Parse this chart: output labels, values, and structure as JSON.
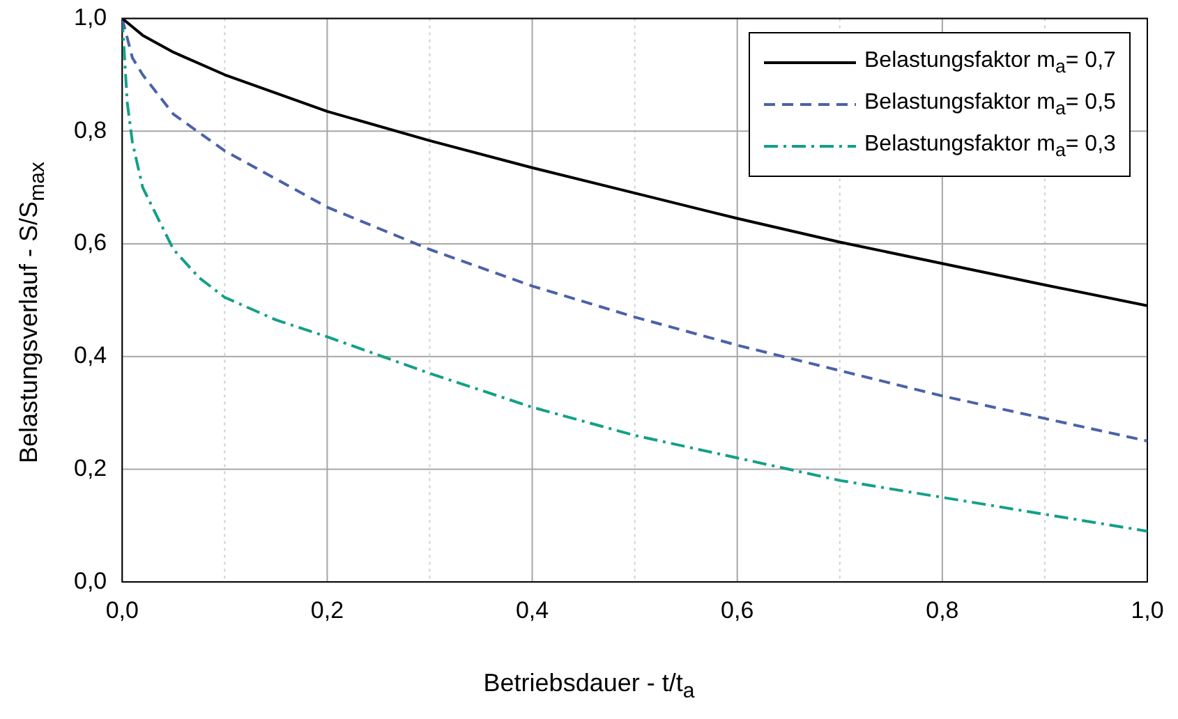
{
  "chart_data": {
    "type": "line",
    "xlabel": "Betriebsdauer - t/t$_{a}$",
    "ylabel": "Belastungsverlauf - S/S$_{max}$",
    "xlim": [
      0,
      1
    ],
    "ylim": [
      0,
      1
    ],
    "xticks": [
      {
        "value": 0,
        "label": "0,0"
      },
      {
        "value": 0.1,
        "label": null
      },
      {
        "value": 0.2,
        "label": "0,2"
      },
      {
        "value": 0.3,
        "label": null
      },
      {
        "value": 0.4,
        "label": "0,4"
      },
      {
        "value": 0.5,
        "label": null
      },
      {
        "value": 0.6,
        "label": "0,6"
      },
      {
        "value": 0.7,
        "label": null
      },
      {
        "value": 0.8,
        "label": "0,8"
      },
      {
        "value": 0.9,
        "label": null
      },
      {
        "value": 1,
        "label": "1,0"
      }
    ],
    "yticks": [
      {
        "value": 0,
        "label": "0,0"
      },
      {
        "value": 0.2,
        "label": "0,2"
      },
      {
        "value": 0.4,
        "label": "0,4"
      },
      {
        "value": 0.6,
        "label": "0,6"
      },
      {
        "value": 0.8,
        "label": "0,8"
      },
      {
        "value": 1,
        "label": "1,0"
      }
    ],
    "grid": true,
    "legend": "top right",
    "marker": "none",
    "series": [
      {
        "name": "Belastungsfaktor m$_{a}$= 0,7",
        "color": "#000000",
        "line_style": "solid",
        "x": [
          0,
          0.02,
          0.05,
          0.1,
          0.2,
          0.3,
          0.4,
          0.5,
          0.6,
          0.7,
          0.8,
          0.9,
          1
        ],
        "values": [
          1,
          0.97,
          0.94,
          0.9,
          0.835,
          0.783,
          0.735,
          0.69,
          0.645,
          0.603,
          0.565,
          0.527,
          0.49
        ]
      },
      {
        "name": "Belastungsfaktor m$_{a}$= 0,5",
        "color": "#4a62a8",
        "line_style": "dashed",
        "x": [
          0,
          0.01,
          0.02,
          0.05,
          0.1,
          0.2,
          0.3,
          0.4,
          0.5,
          0.6,
          0.7,
          0.8,
          0.9,
          1
        ],
        "values": [
          1,
          0.93,
          0.9,
          0.83,
          0.765,
          0.665,
          0.59,
          0.525,
          0.47,
          0.42,
          0.375,
          0.33,
          0.29,
          0.25
        ]
      },
      {
        "name": "Belastungsfaktor m$_{a}$= 0,3",
        "color": "#13a087",
        "line_style": "dashdot",
        "x": [
          0,
          0.005,
          0.01,
          0.02,
          0.05,
          0.075,
          0.1,
          0.15,
          0.2,
          0.3,
          0.4,
          0.5,
          0.6,
          0.7,
          0.8,
          0.9,
          1
        ],
        "values": [
          1,
          0.85,
          0.78,
          0.7,
          0.59,
          0.54,
          0.505,
          0.465,
          0.435,
          0.37,
          0.31,
          0.26,
          0.22,
          0.18,
          0.15,
          0.12,
          0.09
        ]
      }
    ]
  }
}
